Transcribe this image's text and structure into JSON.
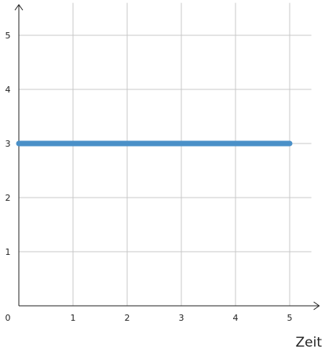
{
  "chart_data": {
    "type": "line",
    "title": "",
    "xlabel": "Zeit",
    "ylabel": "",
    "xlim": [
      0,
      5.4
    ],
    "ylim": [
      0,
      5.6
    ],
    "x_ticks": [
      1,
      2,
      3,
      4,
      5
    ],
    "y_ticks": [
      1,
      2,
      3,
      4,
      5
    ],
    "origin_label": "0",
    "grid": true,
    "series": [
      {
        "x": [
          0,
          5
        ],
        "y": [
          3,
          3
        ],
        "color": "#4a90c8"
      }
    ]
  },
  "colors": {
    "grid": "#c8c8c8",
    "axis": "#222222",
    "series": "#4a90c8"
  }
}
